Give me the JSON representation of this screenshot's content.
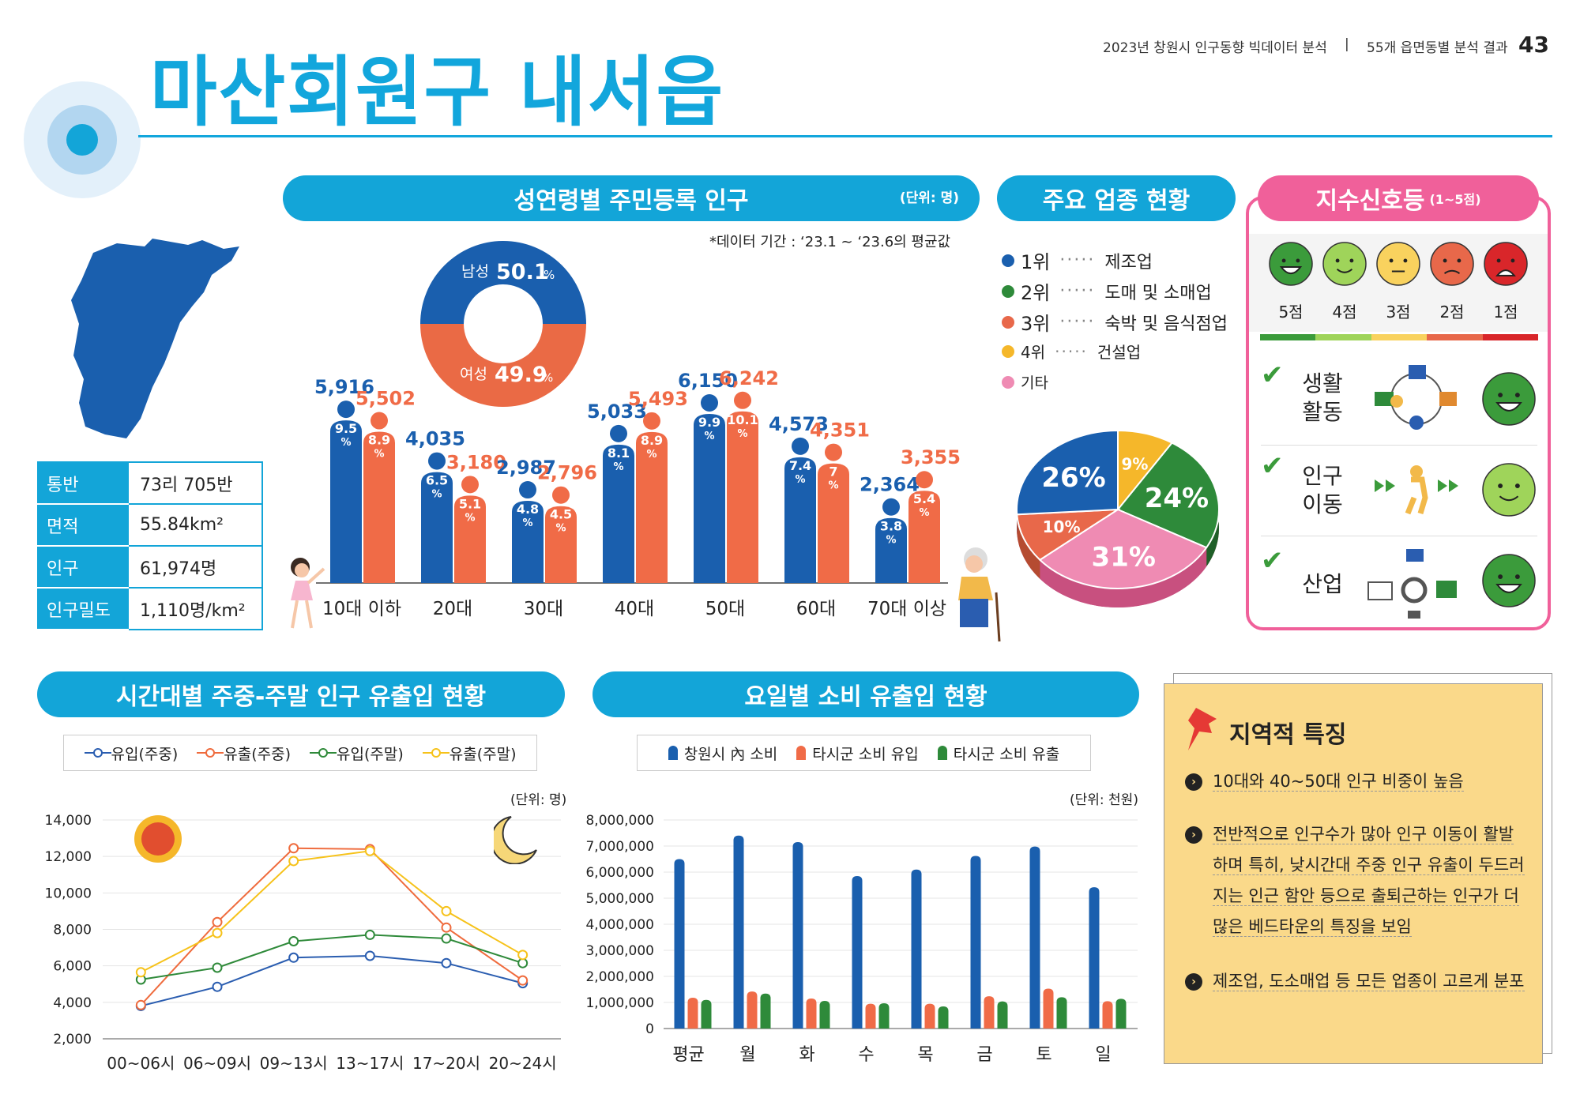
{
  "header": {
    "report": "2023년 창원시 인구동향 빅데이터 분석",
    "separator": "|",
    "section": "55개 읍면동별 분석 결과",
    "page": "43"
  },
  "title": "마산회원구 내서읍",
  "summary": [
    {
      "key": "통반",
      "value": "73리 705반"
    },
    {
      "key": "면적",
      "value": "55.84km²"
    },
    {
      "key": "인구",
      "value": "61,974명"
    },
    {
      "key": "인구밀도",
      "value": "1,110명/km²"
    }
  ],
  "population": {
    "title": "성연령별 주민등록 인구",
    "unit": "(단위: 명)",
    "note": "*데이터 기간 : ‘23.1 ~ ‘23.6의 평균값",
    "male_label": "남성",
    "male_pct": "50.1",
    "female_label": "여성",
    "female_pct": "49.9",
    "pct_sign": "%"
  },
  "industry": {
    "title": "주요 업종 현황",
    "items": [
      {
        "rank": "1위",
        "name": "제조업",
        "color": "#1a5fae"
      },
      {
        "rank": "2위",
        "name": "도매 및 소매업",
        "color": "#2e8a3a"
      },
      {
        "rank": "3위",
        "name": "숙박 및 음식점업",
        "color": "#e8684a"
      },
      {
        "rank": "4위",
        "name": "건설업",
        "color": "#f5b72a"
      },
      {
        "rank": "기타",
        "name": "",
        "color": "#ef8bb3"
      }
    ]
  },
  "index": {
    "title": "지수신호등",
    "subtitle": "(1~5점)",
    "scores": [
      "5점",
      "4점",
      "3점",
      "2점",
      "1점"
    ],
    "categories": [
      {
        "name": "생활\n활동",
        "score": 5
      },
      {
        "name": "인구\n이동",
        "score": 4
      },
      {
        "name": "산업",
        "score": 5
      }
    ]
  },
  "hourly": {
    "title": "시간대별 주중-주말 인구 유출입 현황",
    "unit": "(단위: 명)",
    "legend": [
      "유입(주중)",
      "유출(주중)",
      "유입(주말)",
      "유출(주말)"
    ]
  },
  "spend": {
    "title": "요일별 소비 유출입 현황",
    "unit": "(단위: 천원)",
    "legend": [
      "창원시 內 소비",
      "타시군 소비 유입",
      "타시군 소비 유출"
    ]
  },
  "feature": {
    "title": "지역적 특징",
    "points": [
      [
        "10대와 40~50대 인구 비중이 높음"
      ],
      [
        "전반적으로 인구수가 많아 인구 이동이 활발",
        "하며 특히, 낮시간대 주중 인구 유출이 두드러",
        "지는 인근 함안 등으로 출퇴근하는 인구가 더",
        "많은 베드타운의 특징을 보임"
      ],
      [
        "제조업, 도소매업 등 모든 업종이 고르게 분포"
      ]
    ]
  },
  "chart_data": [
    {
      "type": "bar",
      "title": "성연령별 주민등록 인구",
      "unit": "(단위: 명)",
      "categories": [
        "10대 이하",
        "20대",
        "30대",
        "40대",
        "50대",
        "60대",
        "70대 이상"
      ],
      "series": [
        {
          "name": "남성",
          "color": "#1a5fae",
          "values": [
            5916,
            4035,
            2987,
            5033,
            6150,
            4573,
            2364
          ],
          "labels": [
            "5,916",
            "4,035",
            "2,987",
            "5,033",
            "6,150",
            "4,573",
            "2,364"
          ],
          "pct": [
            "9.5",
            "6.5",
            "4.8",
            "8.1",
            "9.9",
            "7.4",
            "3.8"
          ]
        },
        {
          "name": "여성",
          "color": "#f06b47",
          "values": [
            5502,
            3180,
            2796,
            5493,
            6242,
            4351,
            3355
          ],
          "labels": [
            "5,502",
            "3,180",
            "2,796",
            "5,493",
            "6,242",
            "4,351",
            "3,355"
          ],
          "pct": [
            "8.9",
            "5.1",
            "4.5",
            "8.9",
            "10.1",
            "7",
            "5.4"
          ]
        }
      ]
    },
    {
      "type": "pie",
      "title": "주요 업종 현황",
      "labels": [
        "1위",
        "2위",
        "3위",
        "4위",
        "기타"
      ],
      "values": [
        26,
        24,
        10,
        9,
        31
      ],
      "value_labels": [
        "26%",
        "24%",
        "10%",
        "9%",
        "31%"
      ],
      "colors": [
        "#1a5fae",
        "#2e8a3a",
        "#e8684a",
        "#f5b72a",
        "#ef8bb3"
      ]
    },
    {
      "type": "pie",
      "title": "남성/여성",
      "labels": [
        "남성",
        "여성"
      ],
      "values": [
        50.1,
        49.9
      ],
      "colors": [
        "#1a5fae",
        "#ea6a45"
      ]
    },
    {
      "type": "line",
      "title": "시간대별 주중-주말 인구 유출입 현황",
      "unit": "(단위: 명)",
      "categories": [
        "00~06시",
        "06~09시",
        "09~13시",
        "13~17시",
        "17~20시",
        "20~24시"
      ],
      "ylim": [
        2000,
        14000
      ],
      "yticks": [
        "2,000",
        "4,000",
        "6,000",
        "8,000",
        "10,000",
        "12,000",
        "14,000"
      ],
      "series": [
        {
          "name": "유입(주중)",
          "color": "#2a5db0",
          "values": [
            3800,
            4850,
            6450,
            6550,
            6150,
            5050
          ]
        },
        {
          "name": "유출(주중)",
          "color": "#ef6b3d",
          "values": [
            3850,
            8400,
            12450,
            12400,
            8100,
            5200
          ]
        },
        {
          "name": "유입(주말)",
          "color": "#2f8a3a",
          "values": [
            5250,
            5900,
            7350,
            7700,
            7500,
            6150
          ]
        },
        {
          "name": "유출(주말)",
          "color": "#f6c21a",
          "values": [
            5650,
            7800,
            11750,
            12300,
            9000,
            6600
          ]
        }
      ]
    },
    {
      "type": "bar",
      "title": "요일별 소비 유출입 현황",
      "unit": "(단위: 천원)",
      "categories": [
        "평균",
        "월",
        "화",
        "수",
        "목",
        "금",
        "토",
        "일"
      ],
      "ylim": [
        0,
        8000000
      ],
      "yticks": [
        "0",
        "1,000,000",
        "2,000,000",
        "3,000,000",
        "4,000,000",
        "5,000,000",
        "6,000,000",
        "7,000,000",
        "8,000,000"
      ],
      "series": [
        {
          "name": "창원시 內 소비",
          "color": "#1a5fae",
          "values": [
            6500000,
            7400000,
            7150000,
            5850000,
            6100000,
            6620000,
            6980000,
            5420000
          ]
        },
        {
          "name": "타시군 소비 유입",
          "color": "#f06b47",
          "values": [
            1180000,
            1420000,
            1150000,
            950000,
            950000,
            1240000,
            1530000,
            1050000
          ]
        },
        {
          "name": "타시군 소비 유출",
          "color": "#2e8a3a",
          "values": [
            1100000,
            1340000,
            1060000,
            970000,
            850000,
            1040000,
            1200000,
            1140000
          ]
        }
      ]
    }
  ]
}
